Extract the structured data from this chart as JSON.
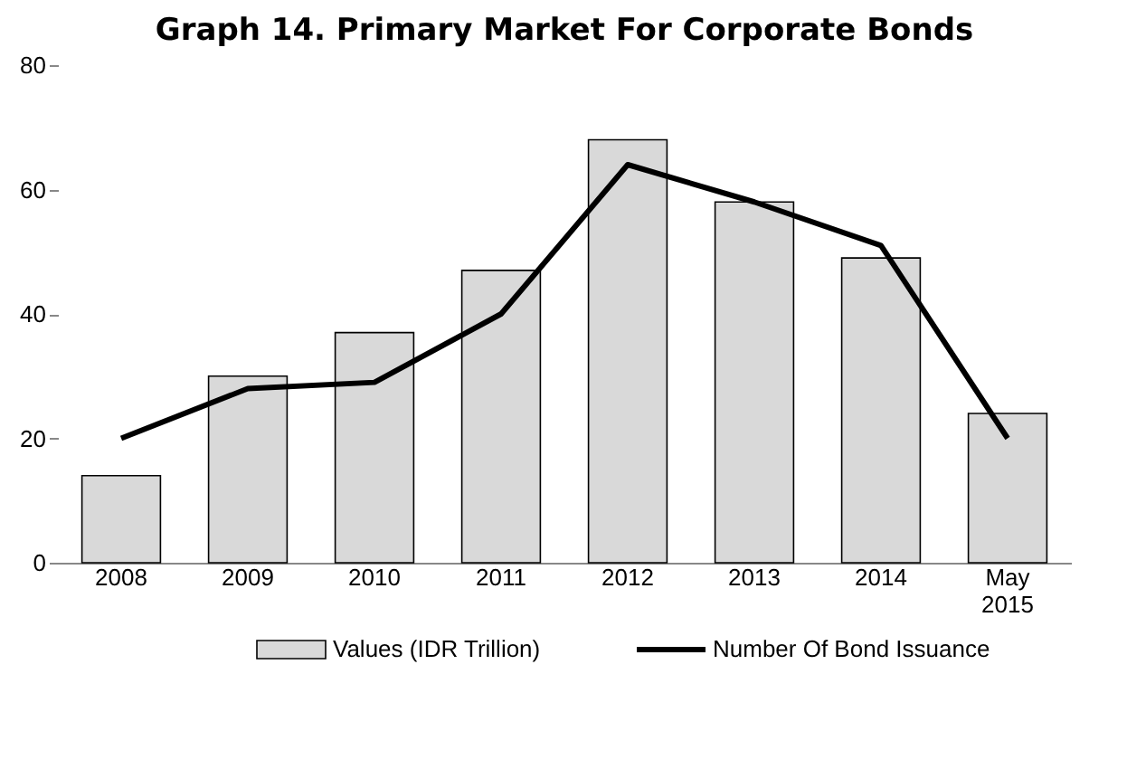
{
  "chart_data": {
    "type": "bar",
    "title": "Graph 14. Primary Market For Corporate Bonds",
    "categories": [
      "2008",
      "2009",
      "2010",
      "2011",
      "2012",
      "2013",
      "2014",
      "May 2015"
    ],
    "series": [
      {
        "name": "Values (IDR Trillion)",
        "color": "#d9d9d9",
        "values": [
          14,
          30,
          37,
          47,
          68,
          58,
          49,
          24
        ]
      },
      {
        "name": "Number Of Bond Issuance",
        "type": "line",
        "color": "#000000",
        "values": [
          20,
          28,
          29,
          40,
          64,
          58,
          51,
          20
        ]
      }
    ],
    "ylim": [
      0,
      80
    ],
    "yticks": [
      0,
      20,
      40,
      60,
      80
    ],
    "grid": false,
    "legend": "bottom"
  }
}
